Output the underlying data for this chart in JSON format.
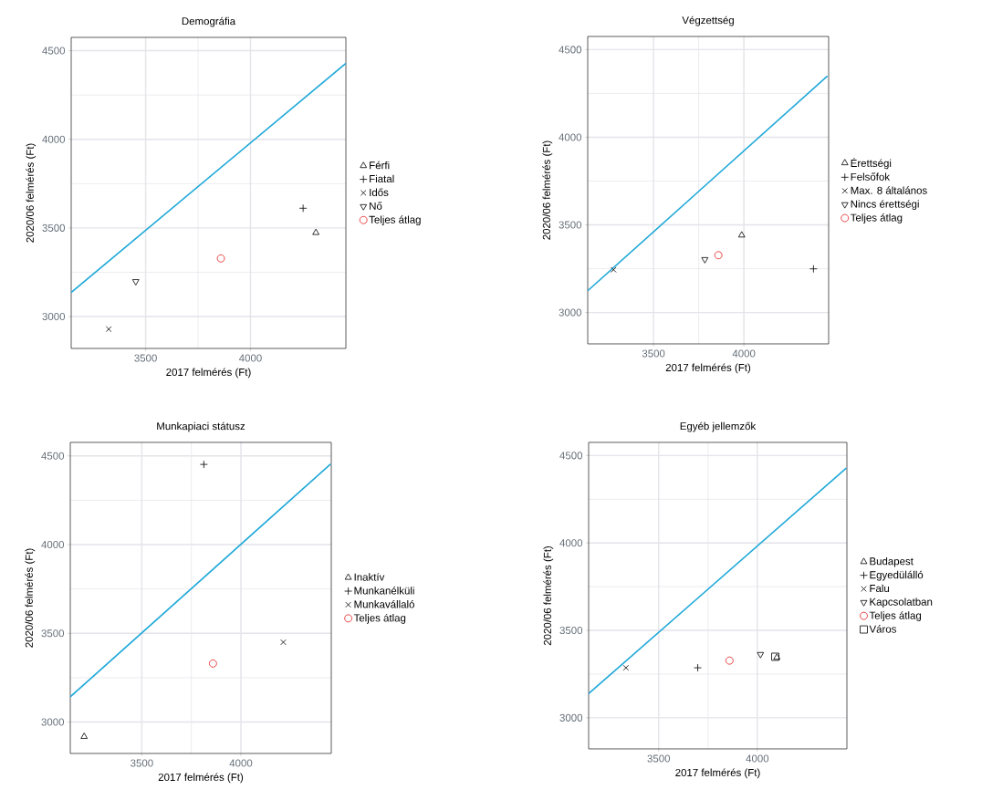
{
  "chart_data": [
    {
      "type": "scatter",
      "title": "Demográfia",
      "xlabel": "2017 felmérés (Ft)",
      "ylabel": "2020/06 felmérés (Ft)",
      "xlim": [
        3145,
        4455
      ],
      "ylim": [
        2820,
        4575
      ],
      "xticks": [
        3500,
        4000
      ],
      "yticks": [
        3000,
        3500,
        4000,
        4500
      ],
      "grid": true,
      "legend": "right",
      "series": [
        {
          "name": "Férfi",
          "color": "#000000",
          "marker": "triangle",
          "x": [
            4312
          ],
          "values": [
            3473
          ]
        },
        {
          "name": "Fiatal",
          "color": "#000000",
          "marker": "plus",
          "x": [
            4251
          ],
          "values": [
            3611
          ]
        },
        {
          "name": "Idős",
          "color": "#000000",
          "marker": "cross",
          "x": [
            3324
          ],
          "values": [
            2929
          ]
        },
        {
          "name": "Nő",
          "color": "#000000",
          "marker": "triangle-down",
          "x": [
            3453
          ],
          "values": [
            3198
          ]
        },
        {
          "name": "Teljes átlag",
          "color": "#e41a1c",
          "marker": "circle",
          "x": [
            3859
          ],
          "values": [
            3328
          ]
        },
        {
          "type": "line",
          "color": "#1fa8d9",
          "marker": "none",
          "x": [
            3145,
            4455
          ],
          "values": [
            3136,
            4429
          ]
        }
      ]
    },
    {
      "type": "scatter",
      "title": "Végzettség",
      "xlabel": "2017 felmérés (Ft)",
      "ylabel": "2020/06 felmérés (Ft)",
      "xlim": [
        3136,
        4469
      ],
      "ylim": [
        2821,
        4575
      ],
      "xticks": [
        3500,
        4000
      ],
      "yticks": [
        3000,
        3500,
        4000,
        4500
      ],
      "grid": true,
      "legend": "right",
      "series": [
        {
          "name": "Érettségi",
          "color": "#000000",
          "marker": "triangle",
          "x": [
            3988
          ],
          "values": [
            3441
          ]
        },
        {
          "name": "Felsőfok",
          "color": "#000000",
          "marker": "plus",
          "x": [
            4385
          ],
          "values": [
            3249
          ]
        },
        {
          "name": "Max. 8 általános",
          "color": "#000000",
          "marker": "cross",
          "x": [
            3279
          ],
          "values": [
            3244
          ]
        },
        {
          "name": "Nincs érettségi",
          "color": "#000000",
          "marker": "triangle-down",
          "x": [
            3784
          ],
          "values": [
            3303
          ]
        },
        {
          "name": "Teljes átlag",
          "color": "#e41a1c",
          "marker": "circle",
          "x": [
            3859
          ],
          "values": [
            3327
          ]
        },
        {
          "type": "line",
          "color": "#1fa8d9",
          "marker": "none",
          "x": [
            3136,
            4462
          ],
          "values": [
            3124,
            4349
          ]
        }
      ]
    },
    {
      "type": "scatter",
      "title": "Munkapiaci státusz",
      "xlabel": "2017 felmérés (Ft)",
      "ylabel": "2020/06 felmérés (Ft)",
      "xlim": [
        3139,
        4456
      ],
      "ylim": [
        2823,
        4576
      ],
      "xticks": [
        3500,
        4000
      ],
      "yticks": [
        3000,
        3500,
        4000,
        4500
      ],
      "grid": true,
      "legend": "right",
      "series": [
        {
          "name": "Inaktív",
          "color": "#000000",
          "marker": "triangle",
          "x": [
            3209
          ],
          "values": [
            2918
          ]
        },
        {
          "name": "Munkanélküli",
          "color": "#000000",
          "marker": "plus",
          "x": [
            3813
          ],
          "values": [
            4452
          ]
        },
        {
          "name": "Munkavállaló",
          "color": "#000000",
          "marker": "cross",
          "x": [
            4214
          ],
          "values": [
            3450
          ]
        },
        {
          "name": "Teljes átlag",
          "color": "#e41a1c",
          "marker": "circle",
          "x": [
            3859
          ],
          "values": [
            3330
          ]
        },
        {
          "type": "line",
          "color": "#1fa8d9",
          "marker": "none",
          "x": [
            3139,
            4453
          ],
          "values": [
            3142,
            4454
          ]
        }
      ]
    },
    {
      "type": "scatter",
      "title": "Egyéb jellemzők",
      "xlabel": "2017 felmérés (Ft)",
      "ylabel": "2020/06 felmérés (Ft)",
      "xlim": [
        3145,
        4454
      ],
      "ylim": [
        2822,
        4575
      ],
      "xticks": [
        3500,
        4000
      ],
      "yticks": [
        3000,
        3500,
        4000,
        4500
      ],
      "grid": true,
      "legend": "right",
      "series": [
        {
          "name": "Budapest",
          "color": "#000000",
          "marker": "triangle",
          "x": [
            4099
          ],
          "values": [
            3345
          ]
        },
        {
          "name": "Egyedülálló",
          "color": "#000000",
          "marker": "plus",
          "x": [
            3698
          ],
          "values": [
            3286
          ]
        },
        {
          "name": "Falu",
          "color": "#000000",
          "marker": "cross",
          "x": [
            3334
          ],
          "values": [
            3286
          ]
        },
        {
          "name": "Kapcsolatban",
          "color": "#000000",
          "marker": "triangle-down",
          "x": [
            4016
          ],
          "values": [
            3363
          ]
        },
        {
          "name": "Teljes átlag",
          "color": "#e41a1c",
          "marker": "circle",
          "x": [
            3859
          ],
          "values": [
            3327
          ]
        },
        {
          "name": "Város",
          "color": "#000000",
          "marker": "square",
          "x": [
            4091
          ],
          "values": [
            3349
          ]
        },
        {
          "type": "line",
          "color": "#1fa8d9",
          "marker": "none",
          "x": [
            3145,
            4451
          ],
          "values": [
            3138,
            4428
          ]
        }
      ]
    }
  ]
}
